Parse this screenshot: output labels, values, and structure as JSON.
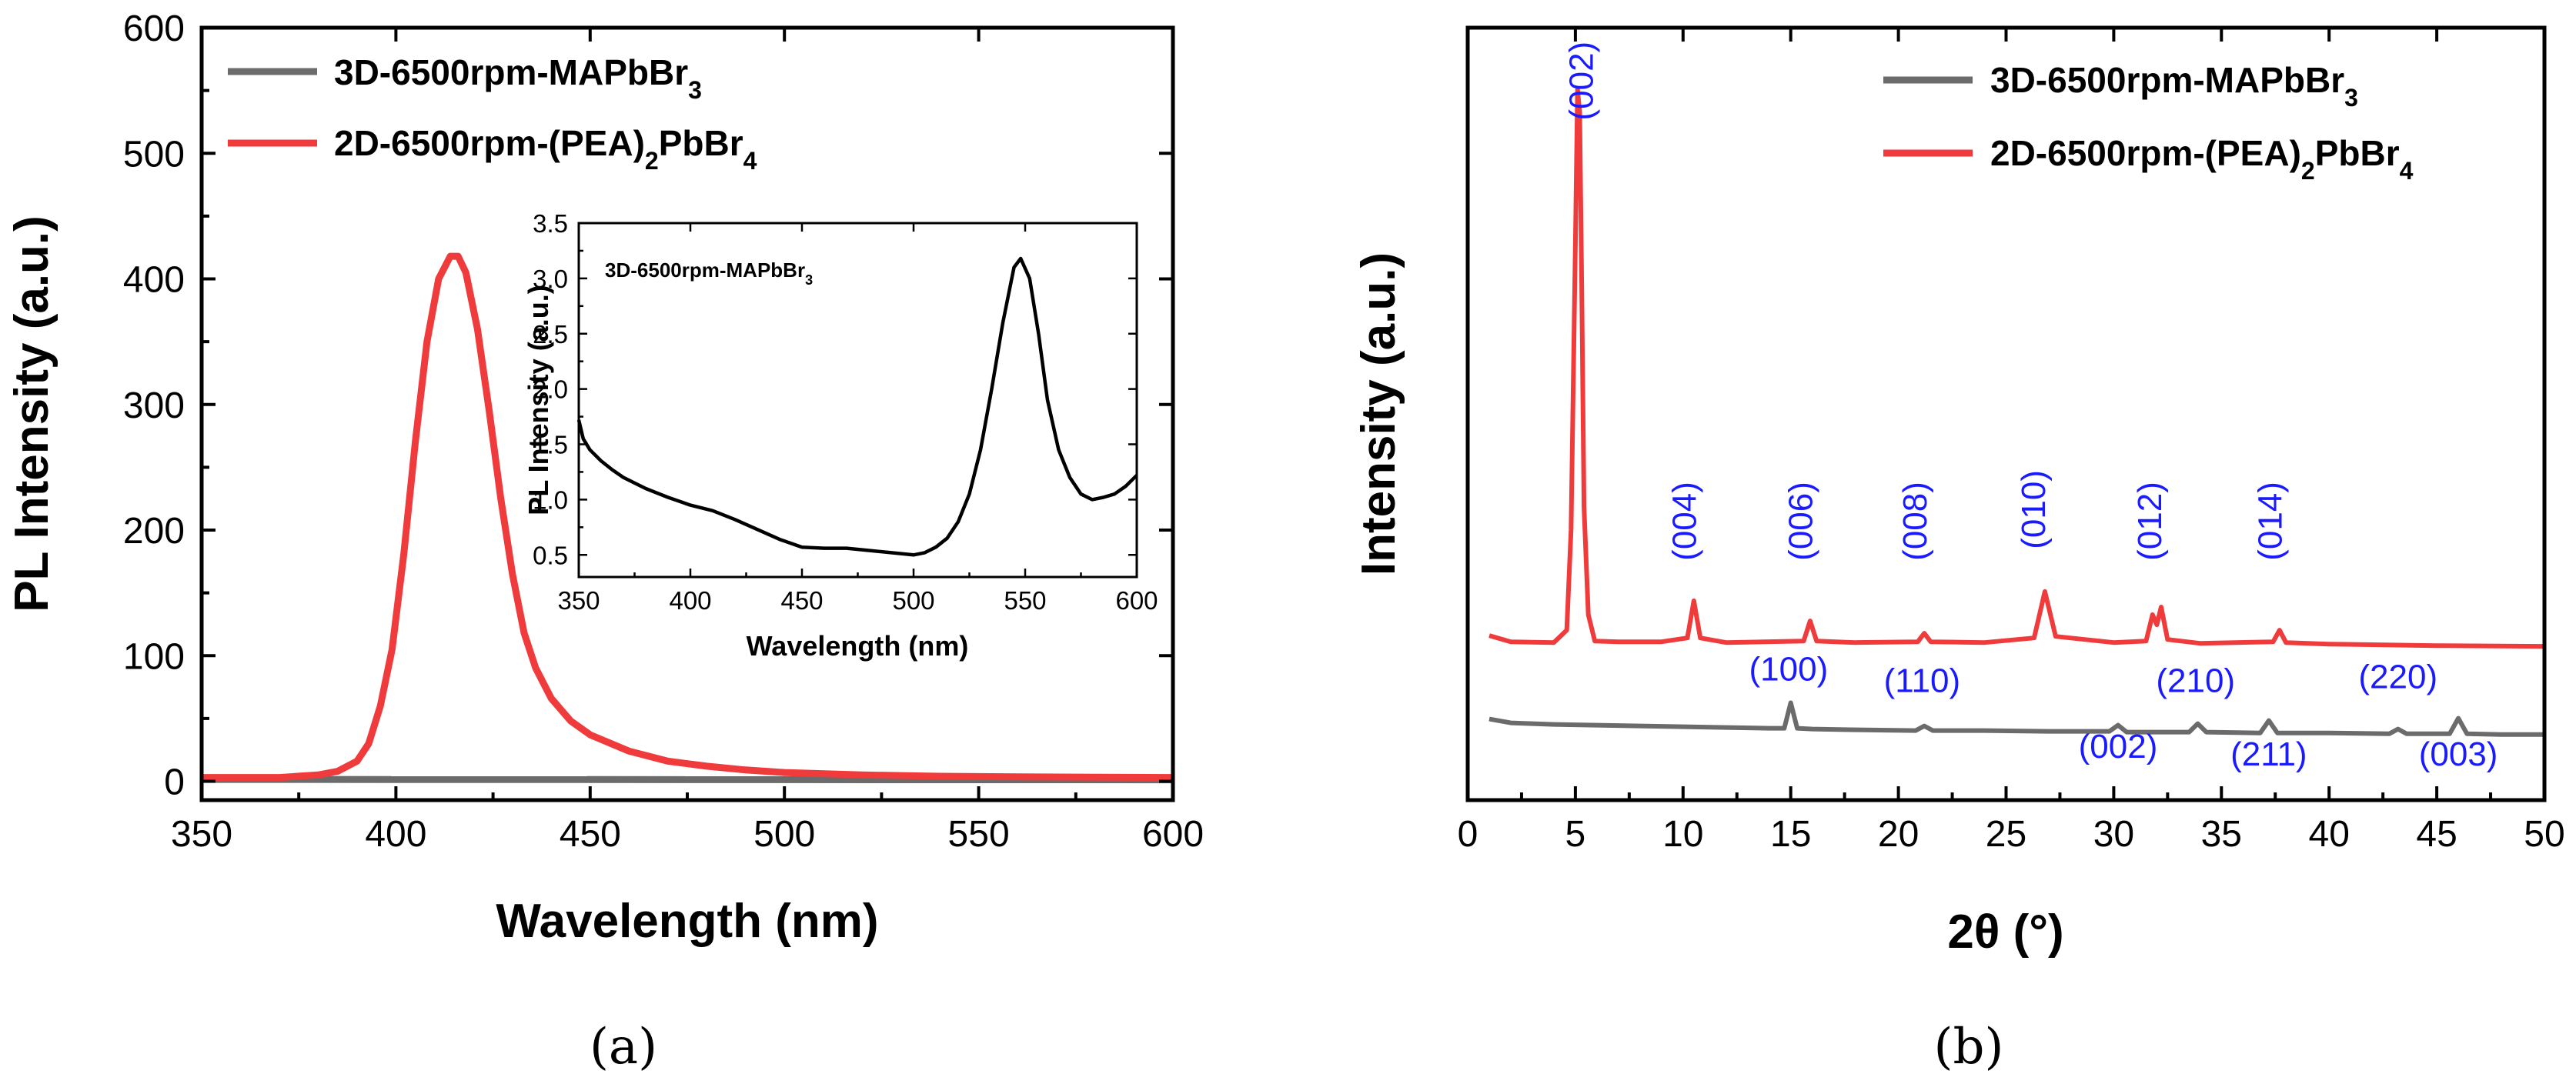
{
  "colors": {
    "gray": "#6b6b6b",
    "red": "#ef3b3b",
    "black": "#000000",
    "blue": "#1a1aff"
  },
  "captions": {
    "a": "(a)",
    "b": "(b)"
  },
  "chart_data": [
    {
      "id": "a",
      "type": "line",
      "title": "",
      "xlabel": "Wavelength (nm)",
      "ylabel": "PL Intensity (a.u.)",
      "xlim": [
        350,
        600
      ],
      "ylim": [
        -15,
        600
      ],
      "x_ticks": [
        350,
        400,
        450,
        500,
        550,
        600
      ],
      "y_ticks": [
        0,
        100,
        200,
        300,
        400,
        500,
        600
      ],
      "legend_location": "top-left",
      "series": [
        {
          "name": "3D-6500rpm-MAPbBr",
          "sub": "3",
          "color": "gray",
          "x": [
            350,
            600
          ],
          "y": [
            1.5,
            1.2
          ]
        },
        {
          "name": "2D-6500rpm-(PEA)",
          "sub": "2",
          "name2": "PbBr",
          "sub2": "4",
          "color": "red",
          "x": [
            350,
            370,
            380,
            385,
            390,
            393,
            396,
            399,
            402,
            405,
            408,
            411,
            414,
            416,
            418,
            421,
            424,
            427,
            430,
            433,
            436,
            440,
            445,
            450,
            460,
            470,
            480,
            490,
            500,
            520,
            540,
            560,
            600
          ],
          "y": [
            3,
            3,
            5,
            8,
            16,
            30,
            60,
            105,
            180,
            270,
            350,
            400,
            418,
            418,
            405,
            360,
            295,
            225,
            165,
            118,
            90,
            66,
            48,
            37,
            24,
            16,
            12,
            9,
            7,
            5,
            4,
            3.5,
            3
          ]
        }
      ]
    },
    {
      "id": "a-inset",
      "type": "line",
      "title": "",
      "xlabel": "Wavelength (nm)",
      "ylabel": "PL Intensity (a.u.)",
      "xlim": [
        350,
        600
      ],
      "ylim": [
        0.3,
        3.5
      ],
      "x_ticks": [
        350,
        400,
        450,
        500,
        550,
        600
      ],
      "y_ticks": [
        0.5,
        1.0,
        1.5,
        2.0,
        2.5,
        3.0,
        3.5
      ],
      "y_tick_labels": [
        "0.5",
        "1.0",
        "1.5",
        "2.0",
        "2.5",
        "3.0",
        "3.5"
      ],
      "legend": "3D-6500rpm-MAPbBr",
      "legend_sub": "3",
      "series": [
        {
          "name": "3D-6500rpm-MAPbBr3",
          "color": "black",
          "x": [
            350,
            352,
            355,
            360,
            365,
            370,
            380,
            390,
            400,
            410,
            420,
            430,
            440,
            450,
            460,
            470,
            480,
            490,
            500,
            505,
            510,
            515,
            520,
            525,
            530,
            535,
            540,
            545,
            548,
            552,
            556,
            560,
            565,
            570,
            575,
            580,
            585,
            590,
            595,
            600
          ],
          "y": [
            1.72,
            1.55,
            1.45,
            1.35,
            1.27,
            1.2,
            1.1,
            1.02,
            0.95,
            0.9,
            0.82,
            0.73,
            0.64,
            0.57,
            0.56,
            0.56,
            0.54,
            0.52,
            0.5,
            0.52,
            0.57,
            0.65,
            0.8,
            1.05,
            1.45,
            2.0,
            2.6,
            3.1,
            3.18,
            3.0,
            2.5,
            1.9,
            1.45,
            1.2,
            1.05,
            1.0,
            1.02,
            1.05,
            1.12,
            1.22
          ]
        }
      ]
    },
    {
      "id": "b",
      "type": "line",
      "title": "",
      "xlabel": "2θ (°)",
      "ylabel": "Intensity (a.u.)",
      "xlim": [
        0,
        50
      ],
      "ylim": [
        0,
        1
      ],
      "x_ticks": [
        0,
        5,
        10,
        15,
        20,
        25,
        30,
        35,
        40,
        45,
        50
      ],
      "legend_location": "top-right",
      "series": [
        {
          "name": "3D-6500rpm-MAPbBr",
          "sub": "3",
          "color": "gray",
          "x": [
            1,
            2,
            4,
            6,
            8,
            10,
            12,
            14,
            14.7,
            15,
            15.3,
            16,
            18,
            20.8,
            21.2,
            21.6,
            24,
            27,
            29.8,
            30.2,
            30.6,
            33.5,
            33.9,
            34.3,
            36.8,
            37.2,
            37.6,
            40,
            42.8,
            43.2,
            43.6,
            45.6,
            46,
            46.4,
            48,
            50
          ],
          "y": [
            0.105,
            0.1,
            0.098,
            0.097,
            0.096,
            0.095,
            0.094,
            0.093,
            0.093,
            0.126,
            0.093,
            0.092,
            0.091,
            0.09,
            0.096,
            0.09,
            0.09,
            0.089,
            0.089,
            0.097,
            0.088,
            0.088,
            0.099,
            0.088,
            0.087,
            0.103,
            0.087,
            0.087,
            0.086,
            0.092,
            0.086,
            0.086,
            0.106,
            0.086,
            0.085,
            0.085
          ]
        },
        {
          "name": "2D-6500rpm-(PEA)",
          "sub": "2",
          "name2": "PbBr",
          "sub2": "4",
          "color": "red",
          "x": [
            1,
            2,
            4,
            4.6,
            4.8,
            5.0,
            5.1,
            5.2,
            5.3,
            5.4,
            5.6,
            5.9,
            7,
            9,
            10.2,
            10.5,
            10.8,
            12,
            15.6,
            15.9,
            16.2,
            18,
            20.9,
            21.2,
            21.5,
            24,
            26.3,
            26.8,
            27.3,
            30,
            31.5,
            31.8,
            32,
            32.2,
            32.5,
            34,
            37.4,
            37.7,
            38,
            40,
            45,
            50
          ],
          "y": [
            0.213,
            0.205,
            0.204,
            0.22,
            0.35,
            0.72,
            0.92,
            0.89,
            0.65,
            0.38,
            0.24,
            0.206,
            0.205,
            0.205,
            0.21,
            0.258,
            0.21,
            0.204,
            0.206,
            0.232,
            0.206,
            0.204,
            0.205,
            0.216,
            0.205,
            0.204,
            0.21,
            0.27,
            0.212,
            0.204,
            0.206,
            0.24,
            0.227,
            0.25,
            0.208,
            0.203,
            0.205,
            0.22,
            0.204,
            0.202,
            0.2,
            0.199
          ]
        }
      ],
      "peak_labels": [
        {
          "text": "(002)",
          "x": 5.8,
          "y": 0.88,
          "rot": true
        },
        {
          "text": "(004)",
          "x": 10.6,
          "y": 0.31,
          "rot": true
        },
        {
          "text": "(006)",
          "x": 16.0,
          "y": 0.31,
          "rot": true
        },
        {
          "text": "(008)",
          "x": 21.3,
          "y": 0.31,
          "rot": true
        },
        {
          "text": "(010)",
          "x": 26.8,
          "y": 0.325,
          "rot": true
        },
        {
          "text": "(012)",
          "x": 32.2,
          "y": 0.31,
          "rot": true
        },
        {
          "text": "(014)",
          "x": 37.8,
          "y": 0.31,
          "rot": true
        },
        {
          "text": "(100)",
          "x": 14.9,
          "y": 0.155,
          "rot": false
        },
        {
          "text": "(110)",
          "x": 21.1,
          "y": 0.14,
          "rot": false
        },
        {
          "text": "(210)",
          "x": 33.8,
          "y": 0.14,
          "rot": false
        },
        {
          "text": "(220)",
          "x": 43.2,
          "y": 0.145,
          "rot": false
        },
        {
          "text": "(002)",
          "x": 30.2,
          "y": 0.055,
          "rot": false
        },
        {
          "text": "(211)",
          "x": 37.2,
          "y": 0.045,
          "rot": false
        },
        {
          "text": "(003)",
          "x": 46.0,
          "y": 0.045,
          "rot": false
        }
      ]
    }
  ]
}
